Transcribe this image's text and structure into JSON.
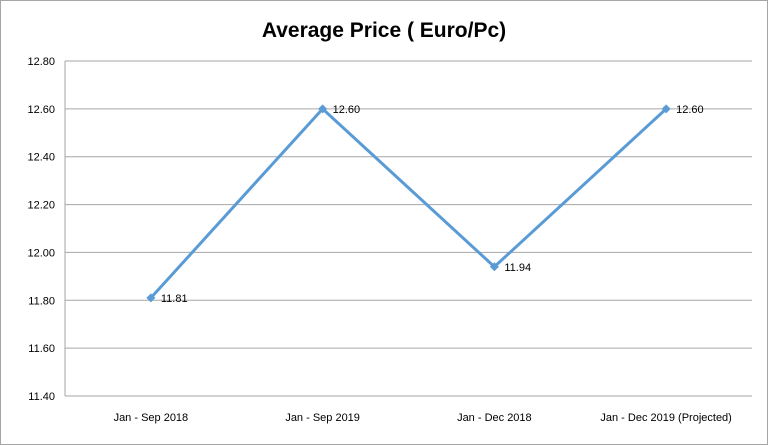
{
  "chart_data": {
    "type": "line",
    "title": "Average Price ( Euro/Pc)",
    "xlabel": "",
    "ylabel": "",
    "categories": [
      "Jan - Sep 2018",
      "Jan - Sep 2019",
      "Jan - Dec 2018",
      "Jan - Dec 2019 (Projected)"
    ],
    "series": [
      {
        "values": [
          11.81,
          12.6,
          11.94,
          12.6
        ],
        "labels": [
          "11.81",
          "12.60",
          "11.94",
          "12.60"
        ],
        "color": "#5b9bd5"
      }
    ],
    "ylim": [
      11.4,
      12.8
    ],
    "yticks": [
      11.4,
      11.6,
      11.8,
      12.0,
      12.2,
      12.4,
      12.6,
      12.8
    ],
    "ytick_labels": [
      "11.40",
      "11.60",
      "11.80",
      "12.00",
      "12.20",
      "12.40",
      "12.60",
      "12.80"
    ],
    "grid": true,
    "legend": "none"
  }
}
